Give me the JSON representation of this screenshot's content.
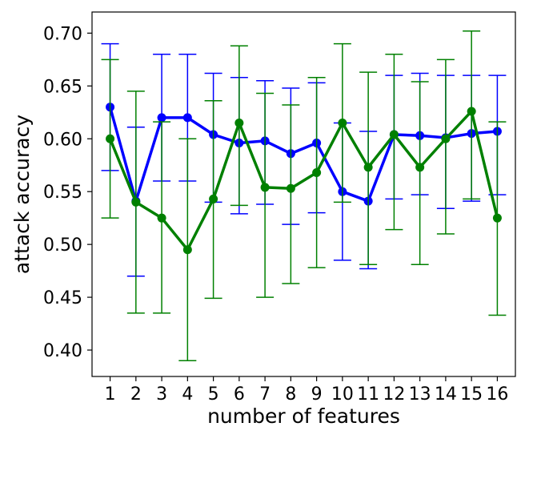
{
  "chart_data": {
    "type": "line",
    "xlabel": "number of features",
    "ylabel": "attack accuracy",
    "x": [
      1,
      2,
      3,
      4,
      5,
      6,
      7,
      8,
      9,
      10,
      11,
      12,
      13,
      14,
      15,
      16
    ],
    "x_tick_labels": [
      "1",
      "2",
      "3",
      "4",
      "5",
      "6",
      "7",
      "8",
      "9",
      "10",
      "11",
      "12",
      "13",
      "14",
      "15",
      "16"
    ],
    "xlim": [
      0.3,
      16.7
    ],
    "ylim": [
      0.375,
      0.72
    ],
    "y_ticks": [
      0.4,
      0.45,
      0.5,
      0.55,
      0.6,
      0.65,
      0.7
    ],
    "y_tick_labels": [
      "0.40",
      "0.45",
      "0.50",
      "0.55",
      "0.60",
      "0.65",
      "0.70"
    ],
    "grid": false,
    "legend": "none",
    "series": [
      {
        "color": "#0000ff",
        "values": [
          0.63,
          0.541,
          0.62,
          0.62,
          0.604,
          0.596,
          0.598,
          0.586,
          0.596,
          0.55,
          0.541,
          0.604,
          0.603,
          0.601,
          0.605,
          0.607
        ],
        "err_lower": [
          0.57,
          0.47,
          0.56,
          0.56,
          0.54,
          0.529,
          0.538,
          0.519,
          0.53,
          0.485,
          0.477,
          0.543,
          0.547,
          0.534,
          0.541,
          0.547
        ],
        "err_upper": [
          0.69,
          0.611,
          0.68,
          0.68,
          0.662,
          0.658,
          0.655,
          0.648,
          0.653,
          0.615,
          0.607,
          0.66,
          0.662,
          0.66,
          0.66,
          0.66
        ]
      },
      {
        "color": "#008000",
        "values": [
          0.6,
          0.54,
          0.525,
          0.495,
          0.543,
          0.615,
          0.554,
          0.553,
          0.568,
          0.615,
          0.573,
          0.604,
          0.573,
          0.6,
          0.626,
          0.525
        ],
        "err_lower": [
          0.525,
          0.435,
          0.435,
          0.39,
          0.449,
          0.537,
          0.45,
          0.463,
          0.478,
          0.54,
          0.481,
          0.514,
          0.481,
          0.51,
          0.543,
          0.433
        ],
        "err_upper": [
          0.675,
          0.645,
          0.616,
          0.6,
          0.636,
          0.688,
          0.643,
          0.632,
          0.658,
          0.69,
          0.663,
          0.68,
          0.654,
          0.675,
          0.702,
          0.616
        ]
      }
    ]
  }
}
